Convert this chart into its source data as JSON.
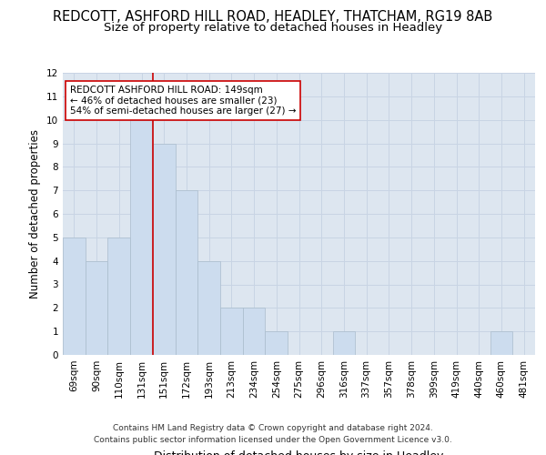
{
  "title": "REDCOTT, ASHFORD HILL ROAD, HEADLEY, THATCHAM, RG19 8AB",
  "subtitle": "Size of property relative to detached houses in Headley",
  "xlabel": "Distribution of detached houses by size in Headley",
  "ylabel": "Number of detached properties",
  "bar_labels": [
    "69sqm",
    "90sqm",
    "110sqm",
    "131sqm",
    "151sqm",
    "172sqm",
    "193sqm",
    "213sqm",
    "234sqm",
    "254sqm",
    "275sqm",
    "296sqm",
    "316sqm",
    "337sqm",
    "357sqm",
    "378sqm",
    "399sqm",
    "419sqm",
    "440sqm",
    "460sqm",
    "481sqm"
  ],
  "bar_values": [
    5,
    4,
    5,
    10,
    9,
    7,
    4,
    2,
    2,
    1,
    0,
    0,
    1,
    0,
    0,
    0,
    0,
    0,
    0,
    1,
    0
  ],
  "bar_color": "#ccdcee",
  "bar_edge_color": "#aabccc",
  "subject_line_index": 4,
  "subject_line_color": "#cc0000",
  "annotation_text": "REDCOTT ASHFORD HILL ROAD: 149sqm\n← 46% of detached houses are smaller (23)\n54% of semi-detached houses are larger (27) →",
  "annotation_box_color": "#ffffff",
  "annotation_box_edge_color": "#cc0000",
  "ylim": [
    0,
    12
  ],
  "yticks": [
    0,
    1,
    2,
    3,
    4,
    5,
    6,
    7,
    8,
    9,
    10,
    11,
    12
  ],
  "grid_color": "#c8d4e4",
  "background_color": "#dde6f0",
  "footer": "Contains HM Land Registry data © Crown copyright and database right 2024.\nContains public sector information licensed under the Open Government Licence v3.0.",
  "title_fontsize": 10.5,
  "subtitle_fontsize": 9.5,
  "xlabel_fontsize": 9,
  "ylabel_fontsize": 8.5,
  "tick_fontsize": 7.5,
  "annotation_fontsize": 7.5,
  "footer_fontsize": 6.5
}
